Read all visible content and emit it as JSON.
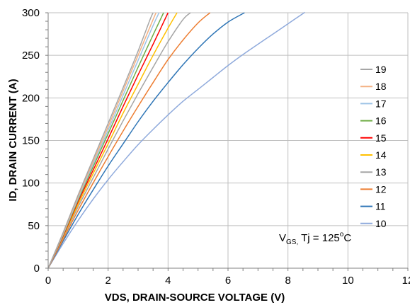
{
  "chart_data": {
    "type": "line",
    "title": "",
    "xlabel": "VDS, DRAIN-SOURCE VOLTAGE (V)",
    "ylabel": "ID, DRAIN CURRENT (A)",
    "xlim": [
      0,
      12
    ],
    "ylim": [
      0,
      300
    ],
    "xticks": [
      0,
      2,
      4,
      6,
      8,
      10,
      12
    ],
    "yticks": [
      0,
      50,
      100,
      150,
      200,
      250,
      300
    ],
    "grid": true,
    "legend_position": "right",
    "annotation": {
      "main": "V",
      "sub": "GS,",
      "rest": " Tj  = 125",
      "sup": "o",
      "unit": "C"
    },
    "series": [
      {
        "name": "19",
        "color": "#a6a6a6",
        "points": [
          [
            0,
            0
          ],
          [
            0.5,
            42
          ],
          [
            1,
            86
          ],
          [
            1.5,
            128
          ],
          [
            2,
            170
          ],
          [
            2.5,
            212
          ],
          [
            3,
            255
          ],
          [
            3.4,
            292
          ],
          [
            3.5,
            300
          ]
        ]
      },
      {
        "name": "18",
        "color": "#f4b183",
        "points": [
          [
            0,
            0
          ],
          [
            0.5,
            41
          ],
          [
            1,
            84
          ],
          [
            1.5,
            125
          ],
          [
            2,
            166
          ],
          [
            2.5,
            208
          ],
          [
            3,
            250
          ],
          [
            3.5,
            292
          ],
          [
            3.6,
            300
          ]
        ]
      },
      {
        "name": "17",
        "color": "#9dc3e6",
        "points": [
          [
            0,
            0
          ],
          [
            0.5,
            40
          ],
          [
            1,
            82
          ],
          [
            1.5,
            122
          ],
          [
            2,
            162
          ],
          [
            2.5,
            203
          ],
          [
            3,
            244
          ],
          [
            3.5,
            285
          ],
          [
            3.7,
            300
          ]
        ]
      },
      {
        "name": "16",
        "color": "#70ad47",
        "points": [
          [
            0,
            0
          ],
          [
            0.5,
            39
          ],
          [
            1,
            80
          ],
          [
            1.5,
            119
          ],
          [
            2,
            158
          ],
          [
            2.5,
            197
          ],
          [
            3,
            236
          ],
          [
            3.5,
            274
          ],
          [
            3.85,
            300
          ]
        ]
      },
      {
        "name": "15",
        "color": "#ff0000",
        "points": [
          [
            0,
            0
          ],
          [
            0.5,
            38
          ],
          [
            1,
            78
          ],
          [
            1.5,
            115
          ],
          [
            2,
            152
          ],
          [
            2.5,
            190
          ],
          [
            3,
            227
          ],
          [
            3.5,
            263
          ],
          [
            4,
            300
          ]
        ]
      },
      {
        "name": "14",
        "color": "#ffc000",
        "points": [
          [
            0,
            0
          ],
          [
            0.5,
            37
          ],
          [
            1,
            75
          ],
          [
            1.5,
            111
          ],
          [
            2,
            146
          ],
          [
            2.5,
            182
          ],
          [
            3,
            216
          ],
          [
            3.5,
            250
          ],
          [
            4,
            282
          ],
          [
            4.3,
            300
          ]
        ]
      },
      {
        "name": "13",
        "color": "#a5a5a5",
        "points": [
          [
            0,
            0
          ],
          [
            0.5,
            36
          ],
          [
            1,
            72
          ],
          [
            1.5,
            106
          ],
          [
            2,
            140
          ],
          [
            2.5,
            173
          ],
          [
            3,
            205
          ],
          [
            3.5,
            236
          ],
          [
            4,
            266
          ],
          [
            4.5,
            292
          ],
          [
            4.75,
            300
          ]
        ]
      },
      {
        "name": "12",
        "color": "#ed7d31",
        "points": [
          [
            0,
            0
          ],
          [
            0.5,
            34
          ],
          [
            1,
            68
          ],
          [
            1.5,
            100
          ],
          [
            2,
            131
          ],
          [
            2.5,
            161
          ],
          [
            3,
            190
          ],
          [
            3.5,
            218
          ],
          [
            4,
            245
          ],
          [
            4.5,
            268
          ],
          [
            5,
            288
          ],
          [
            5.4,
            300
          ]
        ]
      },
      {
        "name": "11",
        "color": "#2e75b6",
        "points": [
          [
            0,
            0
          ],
          [
            0.5,
            32
          ],
          [
            1,
            63
          ],
          [
            1.5,
            92
          ],
          [
            2,
            120
          ],
          [
            2.5,
            146
          ],
          [
            3,
            172
          ],
          [
            3.5,
            196
          ],
          [
            4,
            218
          ],
          [
            4.5,
            239
          ],
          [
            5,
            258
          ],
          [
            5.5,
            275
          ],
          [
            6,
            289
          ],
          [
            6.55,
            300
          ]
        ]
      },
      {
        "name": "10",
        "color": "#8faadc",
        "points": [
          [
            0,
            0
          ],
          [
            0.5,
            29
          ],
          [
            1,
            56
          ],
          [
            1.5,
            81
          ],
          [
            2,
            104
          ],
          [
            2.5,
            125
          ],
          [
            3,
            145
          ],
          [
            3.5,
            163
          ],
          [
            4,
            180
          ],
          [
            4.5,
            196
          ],
          [
            5,
            210
          ],
          [
            5.5,
            224
          ],
          [
            6,
            238
          ],
          [
            6.5,
            251
          ],
          [
            7,
            263
          ],
          [
            7.5,
            275
          ],
          [
            8,
            287
          ],
          [
            8.5,
            299
          ],
          [
            8.55,
            300
          ]
        ]
      }
    ]
  }
}
